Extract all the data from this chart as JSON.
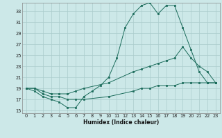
{
  "title": "",
  "xlabel": "Humidex (Indice chaleur)",
  "background_color": "#cce8e8",
  "grid_color": "#aacccc",
  "line_color": "#1a6b5a",
  "xlim": [
    -0.5,
    23.5
  ],
  "ylim": [
    14.5,
    34.5
  ],
  "xticks": [
    0,
    1,
    2,
    3,
    4,
    5,
    6,
    7,
    8,
    9,
    10,
    11,
    12,
    13,
    14,
    15,
    16,
    17,
    18,
    19,
    20,
    21,
    22,
    23
  ],
  "yticks": [
    15,
    17,
    19,
    21,
    23,
    25,
    27,
    29,
    31,
    33
  ],
  "series": [
    {
      "x": [
        0,
        1,
        2,
        3,
        4,
        5,
        6,
        7,
        8,
        9,
        10,
        11,
        12,
        13,
        14,
        15,
        16,
        17,
        18,
        19,
        20,
        21,
        22,
        23
      ],
      "y": [
        19,
        18.5,
        17.5,
        17.0,
        16.5,
        15.5,
        15.5,
        17.5,
        18.5,
        19.5,
        21.0,
        24.5,
        30.0,
        32.5,
        34.0,
        34.5,
        32.5,
        34.0,
        34.0,
        30.0,
        26.0,
        22.0,
        20.0,
        20.0
      ]
    },
    {
      "x": [
        0,
        1,
        2,
        3,
        4,
        5,
        6,
        7,
        10,
        13,
        14,
        15,
        16,
        17,
        18,
        19,
        20,
        21,
        22,
        23
      ],
      "y": [
        19,
        19,
        18.5,
        18,
        18,
        18,
        18.5,
        19,
        20,
        22,
        22.5,
        23,
        23.5,
        24,
        24.5,
        26.5,
        24.5,
        23,
        22,
        20
      ]
    },
    {
      "x": [
        0,
        1,
        2,
        3,
        4,
        5,
        6,
        7,
        10,
        13,
        14,
        15,
        16,
        17,
        18,
        19,
        20,
        21,
        22,
        23
      ],
      "y": [
        19,
        19,
        18,
        17.5,
        17.5,
        17,
        17,
        17,
        17.5,
        18.5,
        19,
        19,
        19.5,
        19.5,
        19.5,
        20,
        20,
        20,
        20,
        20
      ]
    }
  ]
}
